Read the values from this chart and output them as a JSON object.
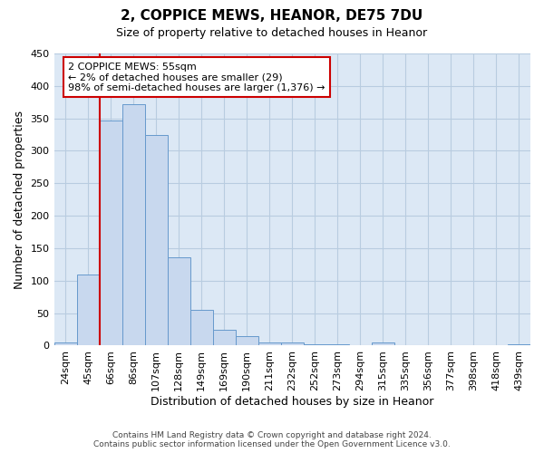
{
  "title_line1": "2, COPPICE MEWS, HEANOR, DE75 7DU",
  "title_line2": "Size of property relative to detached houses in Heanor",
  "xlabel": "Distribution of detached houses by size in Heanor",
  "ylabel": "Number of detached properties",
  "categories": [
    "24sqm",
    "45sqm",
    "66sqm",
    "86sqm",
    "107sqm",
    "128sqm",
    "149sqm",
    "169sqm",
    "190sqm",
    "211sqm",
    "232sqm",
    "252sqm",
    "273sqm",
    "294sqm",
    "315sqm",
    "335sqm",
    "356sqm",
    "377sqm",
    "398sqm",
    "418sqm",
    "439sqm"
  ],
  "values": [
    5,
    110,
    347,
    372,
    325,
    136,
    55,
    25,
    15,
    5,
    5,
    2,
    2,
    0,
    5,
    0,
    0,
    0,
    0,
    0,
    2
  ],
  "bar_color": "#c8d8ee",
  "bar_edge_color": "#6699cc",
  "annotation_box_text": "2 COPPICE MEWS: 55sqm\n← 2% of detached houses are smaller (29)\n98% of semi-detached houses are larger (1,376) →",
  "vline_color": "#cc0000",
  "vline_position": 1.5,
  "ylim": [
    0,
    450
  ],
  "yticks": [
    0,
    50,
    100,
    150,
    200,
    250,
    300,
    350,
    400,
    450
  ],
  "footer_line1": "Contains HM Land Registry data © Crown copyright and database right 2024.",
  "footer_line2": "Contains public sector information licensed under the Open Government Licence v3.0.",
  "background_color": "#ffffff",
  "plot_bg_color": "#dce8f5",
  "grid_color": "#b8cce0",
  "title_fontsize": 11,
  "subtitle_fontsize": 9,
  "ylabel_fontsize": 9,
  "xlabel_fontsize": 9,
  "tick_fontsize": 8,
  "footer_fontsize": 6.5
}
